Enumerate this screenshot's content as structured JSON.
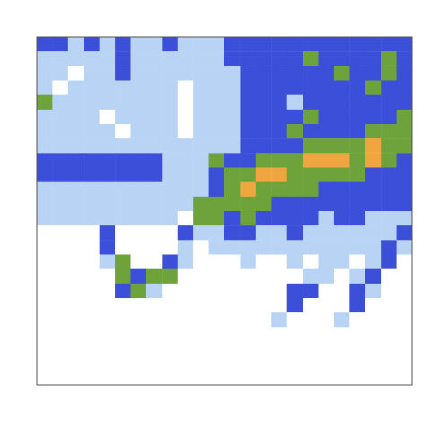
{
  "chart_data": {
    "type": "heatmap",
    "tick_labels": false,
    "xlim": [
      0,
      24
    ],
    "ylim": [
      0,
      24
    ],
    "zlim": [
      0,
      4
    ],
    "cells": [
      [
        2,
        2,
        1,
        2,
        1,
        2,
        1,
        1,
        2,
        1,
        1,
        1,
        2,
        2,
        2,
        2,
        2,
        2,
        2,
        2,
        2,
        2,
        2,
        2
      ],
      [
        1,
        1,
        1,
        1,
        1,
        2,
        1,
        1,
        1,
        1,
        1,
        1,
        2,
        2,
        2,
        2,
        2,
        3,
        2,
        2,
        2,
        2,
        3,
        2
      ],
      [
        1,
        1,
        0,
        1,
        1,
        2,
        1,
        1,
        1,
        1,
        1,
        1,
        1,
        2,
        2,
        2,
        2,
        2,
        2,
        3,
        2,
        2,
        3,
        2
      ],
      [
        1,
        0,
        1,
        1,
        1,
        1,
        1,
        1,
        1,
        0,
        1,
        1,
        1,
        2,
        2,
        2,
        2,
        2,
        2,
        2,
        2,
        3,
        2,
        2
      ],
      [
        3,
        1,
        1,
        1,
        1,
        1,
        1,
        1,
        1,
        0,
        1,
        1,
        1,
        2,
        2,
        2,
        1,
        2,
        2,
        2,
        2,
        2,
        2,
        2
      ],
      [
        1,
        1,
        1,
        1,
        0,
        1,
        1,
        1,
        1,
        0,
        1,
        1,
        1,
        2,
        2,
        2,
        2,
        3,
        2,
        2,
        2,
        2,
        2,
        3
      ],
      [
        1,
        1,
        1,
        1,
        1,
        0,
        1,
        1,
        1,
        0,
        1,
        1,
        1,
        2,
        2,
        2,
        3,
        2,
        2,
        2,
        2,
        3,
        3,
        3
      ],
      [
        1,
        1,
        1,
        1,
        1,
        1,
        1,
        1,
        1,
        1,
        1,
        1,
        1,
        2,
        2,
        2,
        2,
        3,
        3,
        3,
        3,
        4,
        3,
        3
      ],
      [
        2,
        2,
        2,
        2,
        2,
        2,
        2,
        2,
        1,
        1,
        1,
        3,
        2,
        2,
        3,
        3,
        3,
        4,
        4,
        4,
        3,
        4,
        3,
        2
      ],
      [
        2,
        2,
        2,
        2,
        2,
        2,
        2,
        2,
        1,
        1,
        1,
        2,
        3,
        3,
        4,
        4,
        3,
        3,
        3,
        3,
        3,
        2,
        2,
        2
      ],
      [
        1,
        1,
        1,
        1,
        1,
        1,
        1,
        1,
        1,
        1,
        1,
        2,
        3,
        4,
        3,
        3,
        3,
        3,
        2,
        2,
        2,
        2,
        2,
        2
      ],
      [
        1,
        1,
        1,
        1,
        1,
        1,
        1,
        1,
        1,
        1,
        3,
        3,
        3,
        3,
        3,
        2,
        2,
        2,
        2,
        2,
        2,
        2,
        2,
        2
      ],
      [
        1,
        1,
        1,
        1,
        1,
        1,
        1,
        1,
        1,
        0,
        3,
        3,
        2,
        3,
        2,
        2,
        2,
        2,
        1,
        2,
        2,
        1,
        1,
        1
      ],
      [
        0,
        0,
        0,
        0,
        2,
        0,
        0,
        0,
        0,
        2,
        1,
        1,
        2,
        2,
        1,
        1,
        2,
        1,
        1,
        1,
        1,
        1,
        1,
        2
      ],
      [
        0,
        0,
        0,
        0,
        2,
        0,
        0,
        0,
        0,
        1,
        0,
        1,
        1,
        1,
        1,
        1,
        1,
        1,
        1,
        1,
        1,
        1,
        2,
        1
      ],
      [
        0,
        0,
        0,
        0,
        1,
        3,
        0,
        0,
        2,
        1,
        0,
        0,
        0,
        1,
        0,
        0,
        1,
        0,
        1,
        1,
        0,
        1,
        2,
        0
      ],
      [
        0,
        0,
        0,
        0,
        0,
        3,
        2,
        3,
        3,
        0,
        0,
        0,
        0,
        0,
        0,
        0,
        0,
        1,
        1,
        0,
        1,
        2,
        0,
        0
      ],
      [
        0,
        0,
        0,
        0,
        0,
        2,
        3,
        1,
        0,
        0,
        0,
        0,
        0,
        0,
        0,
        0,
        2,
        2,
        0,
        0,
        2,
        1,
        0,
        0
      ],
      [
        0,
        0,
        0,
        0,
        0,
        0,
        0,
        0,
        0,
        0,
        0,
        0,
        0,
        0,
        0,
        0,
        2,
        0,
        0,
        0,
        2,
        0,
        0,
        0
      ],
      [
        0,
        0,
        0,
        0,
        0,
        0,
        0,
        0,
        0,
        0,
        0,
        0,
        0,
        0,
        0,
        1,
        0,
        0,
        0,
        1,
        0,
        0,
        0,
        0
      ],
      [
        0,
        0,
        0,
        0,
        0,
        0,
        0,
        0,
        0,
        0,
        0,
        0,
        0,
        0,
        0,
        0,
        0,
        0,
        0,
        0,
        0,
        0,
        0,
        0
      ],
      [
        0,
        0,
        0,
        0,
        0,
        0,
        0,
        0,
        0,
        0,
        0,
        0,
        0,
        0,
        0,
        0,
        0,
        0,
        0,
        0,
        0,
        0,
        0,
        0
      ],
      [
        0,
        0,
        0,
        0,
        0,
        0,
        0,
        0,
        0,
        0,
        0,
        0,
        0,
        0,
        0,
        0,
        0,
        0,
        0,
        0,
        0,
        0,
        0,
        0
      ],
      [
        0,
        0,
        0,
        0,
        0,
        0,
        0,
        0,
        0,
        0,
        0,
        0,
        0,
        0,
        0,
        0,
        0,
        0,
        0,
        0,
        0,
        0,
        0,
        0
      ]
    ]
  }
}
